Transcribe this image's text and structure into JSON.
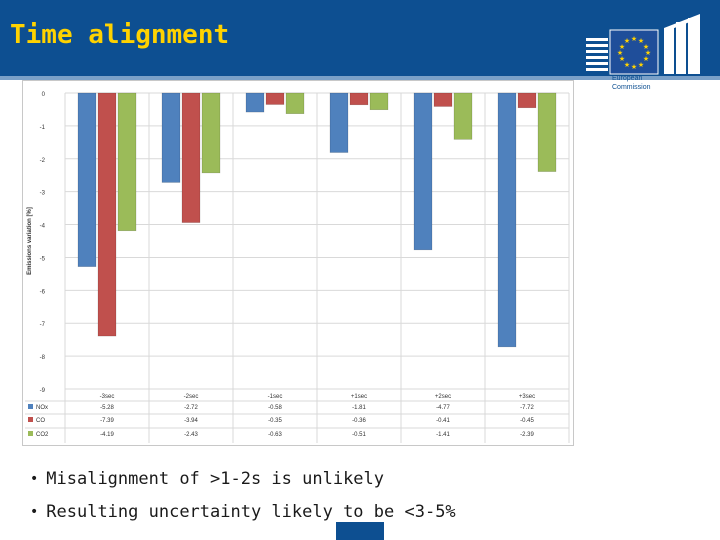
{
  "slide": {
    "title": "Time alignment",
    "logo_line1": "European",
    "logo_line2": "Commission",
    "bullets": [
      "Misalignment of >1-2s is unlikely",
      "Resulting uncertainty likely to be <3-5%"
    ]
  },
  "colors": {
    "header": "#0d4f91",
    "title": "#ffd200",
    "nox": "#4f81bd",
    "co": "#c0504d",
    "co2": "#9bbb59"
  },
  "chart_data": {
    "type": "bar",
    "ylabel": "Emissions variation [%]",
    "ylim": [
      -9,
      0
    ],
    "yticks": [
      0,
      -1,
      -2,
      -3,
      -4,
      -5,
      -6,
      -7,
      -8,
      -9
    ],
    "categories": [
      "-3sec",
      "-2sec",
      "-1sec",
      "+1sec",
      "+2sec",
      "+3sec"
    ],
    "series": [
      {
        "name": "NOx",
        "values": [
          -5.28,
          -2.72,
          -0.58,
          -1.81,
          -4.77,
          -7.72
        ],
        "labels": [
          "-5.28",
          "-2.72",
          "-0.58",
          "-1.81",
          "-4.77",
          "-7.72"
        ]
      },
      {
        "name": "CO",
        "values": [
          -7.39,
          -3.94,
          -0.35,
          -0.36,
          -0.41,
          -0.45
        ],
        "labels": [
          "-7.39",
          "-3.94",
          "-0.35",
          "-0.36",
          "-0.41",
          "-0.45"
        ]
      },
      {
        "name": "CO2",
        "values": [
          -4.19,
          -2.43,
          -0.63,
          -0.51,
          -1.41,
          -2.39
        ],
        "labels": [
          "-4.19",
          "-2.43",
          "-0.63",
          "-0.51",
          "-1.41",
          "-2.39"
        ]
      }
    ],
    "grid": true,
    "legend": "data-table-below"
  }
}
